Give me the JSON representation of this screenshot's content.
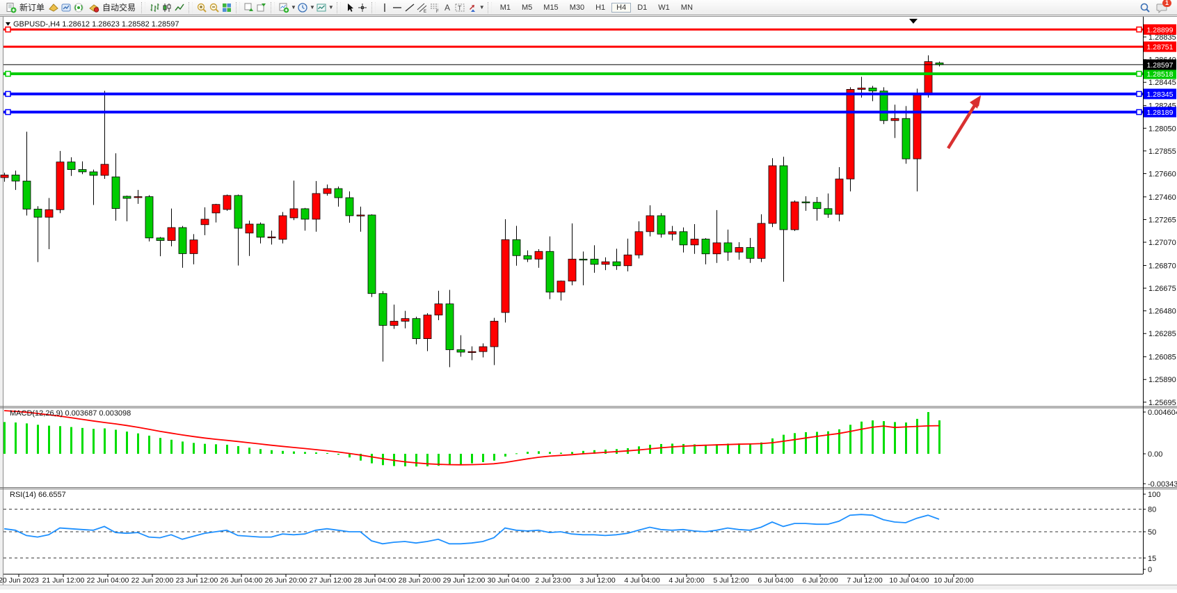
{
  "toolbar": {
    "new_order_label": "新订单",
    "autotrade_label": "自动交易",
    "timeframes": [
      "M1",
      "M5",
      "M15",
      "M30",
      "H1",
      "H4",
      "D1",
      "W1",
      "MN"
    ],
    "active_timeframe": "H4",
    "notification_count": "1",
    "icons": [
      "new-order",
      "metaeditor",
      "terminal",
      "signals",
      "autotrading",
      "bar-chart",
      "candlestick-chart",
      "line-chart",
      "zoom-in",
      "zoom-out",
      "tile-windows",
      "cascade-windows",
      "arrange-windows",
      "indicators",
      "periods",
      "templates",
      "cursor",
      "crosshair",
      "vertical-line",
      "horizontal-line",
      "trendline",
      "equidistant-channel",
      "fibonacci",
      "text",
      "text-label",
      "arrow-tools",
      "search",
      "notifications"
    ]
  },
  "time_axis": {
    "labels": [
      "20 Jun 2023",
      "21 Jun 12:00",
      "22 Jun 04:00",
      "22 Jun 20:00",
      "23 Jun 12:00",
      "26 Jun 04:00",
      "26 Jun 20:00",
      "27 Jun 12:00",
      "28 Jun 04:00",
      "28 Jun 20:00",
      "29 Jun 12:00",
      "30 Jun 04:00",
      "2 Jul 23:00",
      "3 Jul 12:00",
      "4 Jul 04:00",
      "4 Jul 20:00",
      "5 Jul 12:00",
      "6 Jul 04:00",
      "6 Jul 20:00",
      "7 Jul 12:00",
      "10 Jul 04:00",
      "10 Jul 20:00"
    ]
  },
  "chart_data": [
    {
      "type": "candlestick",
      "symbol": "GBPUSD-,H4",
      "ohlc_line": "1.28612 1.28623 1.28582 1.28597",
      "up_color": "#ff0000",
      "down_color": "#00cc00",
      "ylim": [
        1.2567,
        1.28985
      ],
      "y_ticks": [
        "1.28835",
        "1.28640",
        "1.28445",
        "1.28245",
        "1.28050",
        "1.27855",
        "1.27660",
        "1.27460",
        "1.27265",
        "1.27070",
        "1.26870",
        "1.26675",
        "1.26480",
        "1.26285",
        "1.26085",
        "1.25890",
        "1.25695"
      ],
      "hlines": [
        {
          "label": "1.28899",
          "value": 1.28899,
          "color": "#ff0000",
          "width": 3,
          "handles": true
        },
        {
          "label": "1.28751",
          "value": 1.28751,
          "color": "#ff0000",
          "width": 3,
          "handles": false
        },
        {
          "label": "1.28518",
          "value": 1.28518,
          "color": "#00cc00",
          "width": 4,
          "handles": true
        },
        {
          "label": "1.28345",
          "value": 1.28345,
          "color": "#0000ff",
          "width": 4,
          "handles": true
        },
        {
          "label": "1.28189",
          "value": 1.28189,
          "color": "#0000ff",
          "width": 4,
          "handles": true
        }
      ],
      "current_price": {
        "label": "1.28597",
        "value": 1.28597,
        "color": "#000000"
      },
      "arrow_annotation": {
        "color": "#d93030",
        "tail": [
          1363,
          213
        ],
        "tip": [
          1410,
          138
        ]
      },
      "candles": [
        [
          1.27626,
          1.27668,
          1.2759,
          1.27648
        ],
        [
          1.27648,
          1.27686,
          1.2752,
          1.27596
        ],
        [
          1.27596,
          1.2802,
          1.273,
          1.27355
        ],
        [
          1.27355,
          1.2738,
          1.269,
          1.27285
        ],
        [
          1.27285,
          1.2745,
          1.2701,
          1.2735
        ],
        [
          1.2735,
          1.27855,
          1.2732,
          1.2776
        ],
        [
          1.2776,
          1.278,
          1.2764,
          1.27695
        ],
        [
          1.27695,
          1.27765,
          1.27655,
          1.27675
        ],
        [
          1.27675,
          1.27695,
          1.2739,
          1.27645
        ],
        [
          1.27645,
          1.28372,
          1.27615,
          1.2774
        ],
        [
          1.27632,
          1.27835,
          1.27255,
          1.2736
        ],
        [
          1.27465,
          1.27471,
          1.2725,
          1.27447
        ],
        [
          1.27459,
          1.2752,
          1.274,
          1.27462
        ],
        [
          1.27462,
          1.27475,
          1.27077,
          1.27107
        ],
        [
          1.27107,
          1.27115,
          1.2695,
          1.27085
        ],
        [
          1.27085,
          1.2736,
          1.27035,
          1.27196
        ],
        [
          1.27196,
          1.2721,
          1.2685,
          1.26972
        ],
        [
          1.26972,
          1.2714,
          1.2688,
          1.2709
        ],
        [
          1.27221,
          1.2737,
          1.27131,
          1.27268
        ],
        [
          1.27322,
          1.274,
          1.2724,
          1.27395
        ],
        [
          1.27352,
          1.2748,
          1.2734,
          1.27472
        ],
        [
          1.27472,
          1.2748,
          1.2687,
          1.2719
        ],
        [
          1.27149,
          1.27256,
          1.26952,
          1.27226
        ],
        [
          1.27226,
          1.2724,
          1.2706,
          1.27113
        ],
        [
          1.27113,
          1.2717,
          1.2705,
          1.27116
        ],
        [
          1.27095,
          1.2733,
          1.2706,
          1.27298
        ],
        [
          1.2728,
          1.276,
          1.2726,
          1.27358
        ],
        [
          1.27358,
          1.27365,
          1.2717,
          1.27268
        ],
        [
          1.27268,
          1.27596,
          1.27161,
          1.27489
        ],
        [
          1.27489,
          1.27566,
          1.2747,
          1.27531
        ],
        [
          1.27531,
          1.27549,
          1.27376,
          1.27453
        ],
        [
          1.27453,
          1.27507,
          1.27238,
          1.27298
        ],
        [
          1.27298,
          1.27376,
          1.27161,
          1.27304
        ],
        [
          1.27304,
          1.2731,
          1.26599,
          1.26629
        ],
        [
          1.26629,
          1.2665,
          1.26044,
          1.26355
        ],
        [
          1.26355,
          1.26534,
          1.26325,
          1.26391
        ],
        [
          1.26391,
          1.2648,
          1.2633,
          1.26414
        ],
        [
          1.26414,
          1.2643,
          1.26193,
          1.26241
        ],
        [
          1.26241,
          1.2646,
          1.26134,
          1.26444
        ],
        [
          1.26444,
          1.26653,
          1.264,
          1.2654
        ],
        [
          1.2654,
          1.2666,
          1.25996,
          1.26146
        ],
        [
          1.26146,
          1.26271,
          1.26086,
          1.26125
        ],
        [
          1.26125,
          1.26175,
          1.26056,
          1.2613
        ],
        [
          1.2613,
          1.262,
          1.2608,
          1.26172
        ],
        [
          1.26172,
          1.2642,
          1.26014,
          1.26391
        ],
        [
          1.26466,
          1.27268,
          1.2638,
          1.27092
        ],
        [
          1.27092,
          1.27211,
          1.26868,
          1.26955
        ],
        [
          1.26955,
          1.27,
          1.269,
          1.26925
        ],
        [
          1.26925,
          1.2701,
          1.2685,
          1.26991
        ],
        [
          1.26991,
          1.2712,
          1.26581,
          1.26641
        ],
        [
          1.26641,
          1.2674,
          1.26569,
          1.26736
        ],
        [
          1.26736,
          1.27232,
          1.267,
          1.26925
        ],
        [
          1.26925,
          1.2699,
          1.267,
          1.26919
        ],
        [
          1.26925,
          1.27044,
          1.26808,
          1.2688
        ],
        [
          1.2688,
          1.2694,
          1.2683,
          1.26902
        ],
        [
          1.26902,
          1.27014,
          1.26832,
          1.26868
        ],
        [
          1.26868,
          1.27101,
          1.2682,
          1.26961
        ],
        [
          1.26961,
          1.2725,
          1.2693,
          1.27161
        ],
        [
          1.27161,
          1.27387,
          1.2712,
          1.27298
        ],
        [
          1.27298,
          1.2732,
          1.2711,
          1.2714
        ],
        [
          1.2714,
          1.2721,
          1.27085,
          1.27161
        ],
        [
          1.27161,
          1.27197,
          1.26982,
          1.27047
        ],
        [
          1.27047,
          1.27226,
          1.2697,
          1.27097
        ],
        [
          1.27097,
          1.27105,
          1.2688,
          1.2697
        ],
        [
          1.2697,
          1.27346,
          1.26892,
          1.27065
        ],
        [
          1.27065,
          1.27179,
          1.2691,
          1.26985
        ],
        [
          1.26985,
          1.2707,
          1.2692,
          1.27025
        ],
        [
          1.27025,
          1.27107,
          1.26892,
          1.26931
        ],
        [
          1.26931,
          1.2731,
          1.269,
          1.27232
        ],
        [
          1.27232,
          1.27793,
          1.272,
          1.27728
        ],
        [
          1.27728,
          1.27805,
          1.26731,
          1.27178
        ],
        [
          1.27178,
          1.27429,
          1.27167,
          1.27417
        ],
        [
          1.27417,
          1.27465,
          1.2734,
          1.27413
        ],
        [
          1.27413,
          1.27459,
          1.27256,
          1.27359
        ],
        [
          1.27359,
          1.27489,
          1.2728,
          1.2731
        ],
        [
          1.2731,
          1.27716,
          1.2725,
          1.27614
        ],
        [
          1.27614,
          1.28402,
          1.27507,
          1.28384
        ],
        [
          1.28384,
          1.28492,
          1.28313,
          1.28396
        ],
        [
          1.28396,
          1.28414,
          1.28283,
          1.2837
        ],
        [
          1.2837,
          1.28402,
          1.28086,
          1.28116
        ],
        [
          1.28116,
          1.28253,
          1.27966,
          1.28134
        ],
        [
          1.28134,
          1.28241,
          1.27745,
          1.27787
        ],
        [
          1.27787,
          1.2839,
          1.27507,
          1.28343
        ],
        [
          1.28343,
          1.28677,
          1.28313,
          1.28623
        ],
        [
          1.28612,
          1.28623,
          1.28582,
          1.28597
        ]
      ]
    },
    {
      "type": "bar",
      "label": "MACD(12,26,9) 0.003687 0.003098",
      "bar_color": "#00dd00",
      "signal_color": "#ff0000",
      "y_ticks": [
        {
          "label": "0.004604",
          "value": 0.004604
        },
        {
          "label": "0.00",
          "value": 0
        },
        {
          "label": "-0.003438",
          "value": -0.003438
        }
      ],
      "values": [
        0.0035,
        0.00345,
        0.00335,
        0.0032,
        0.0031,
        0.00305,
        0.00295,
        0.00285,
        0.00275,
        0.0028,
        0.00265,
        0.00245,
        0.00225,
        0.002,
        0.00175,
        0.00155,
        0.00135,
        0.0012,
        0.0011,
        0.00105,
        0.001,
        0.00085,
        0.00068,
        0.00052,
        0.0004,
        0.00032,
        0.00026,
        0.0002,
        0.00015,
        8e-05,
        -0.0001,
        -0.0004,
        -0.00075,
        -0.00105,
        -0.00125,
        -0.00135,
        -0.00138,
        -0.0014,
        -0.00138,
        -0.00132,
        -0.00125,
        -0.00115,
        -0.00105,
        -0.00092,
        -0.00075,
        -0.0003,
        5e-05,
        0.00022,
        0.00028,
        0.0002,
        0.00012,
        0.0002,
        0.00032,
        0.0004,
        0.00046,
        0.00052,
        0.00062,
        0.00082,
        0.001,
        0.00108,
        0.00112,
        0.00108,
        0.00104,
        0.001,
        0.00106,
        0.00112,
        0.00114,
        0.00112,
        0.00125,
        0.0017,
        0.0021,
        0.00228,
        0.00238,
        0.00242,
        0.00248,
        0.0027,
        0.0032,
        0.00355,
        0.00368,
        0.0036,
        0.0035,
        0.00345,
        0.00385,
        0.0046,
        0.00369
      ],
      "signal": [
        0.00476,
        0.00468,
        0.00458,
        0.00445,
        0.0043,
        0.00415,
        0.00398,
        0.0038,
        0.00362,
        0.00345,
        0.0033,
        0.00312,
        0.00292,
        0.0027,
        0.00248,
        0.00228,
        0.00208,
        0.0019,
        0.00174,
        0.0016,
        0.00148,
        0.00136,
        0.00122,
        0.00108,
        0.00094,
        0.00082,
        0.0007,
        0.00058,
        0.00046,
        0.00034,
        0.0002,
        4e-05,
        -0.00014,
        -0.00034,
        -0.00054,
        -0.00072,
        -0.00088,
        -0.001,
        -0.0011,
        -0.00116,
        -0.0012,
        -0.00121,
        -0.0012,
        -0.00116,
        -0.0011,
        -0.00096,
        -0.00076,
        -0.00056,
        -0.00038,
        -0.00026,
        -0.00018,
        -0.0001,
        0.0,
        8e-05,
        0.00016,
        0.00024,
        0.00032,
        0.00042,
        0.00054,
        0.00066,
        0.00076,
        0.00084,
        0.0009,
        0.00094,
        0.00098,
        0.00102,
        0.00106,
        0.00108,
        0.00112,
        0.00122,
        0.00138,
        0.00156,
        0.00174,
        0.00192,
        0.00208,
        0.00224,
        0.00246,
        0.0027,
        0.00292,
        0.00306,
        0.0029,
        0.00296,
        0.00302,
        0.00308,
        0.0031
      ]
    },
    {
      "type": "line",
      "label": "RSI(14) 66.6557",
      "color": "#1e90ff",
      "levels": [
        80,
        50,
        15
      ],
      "y_ticks": [
        {
          "label": "100",
          "value": 100
        },
        {
          "label": "80",
          "value": 80
        },
        {
          "label": "50",
          "value": 50
        },
        {
          "label": "15",
          "value": 15
        },
        {
          "label": "0",
          "value": 0
        }
      ],
      "values": [
        54,
        52,
        45,
        43,
        46,
        55,
        54,
        53,
        52,
        57,
        49,
        48,
        49,
        43,
        42,
        46,
        40,
        44,
        48,
        50,
        52,
        45,
        44,
        43,
        43,
        47,
        46,
        47,
        52,
        54,
        52,
        50,
        50,
        38,
        34,
        36,
        37,
        35,
        37,
        40,
        34,
        34,
        35,
        37,
        42,
        55,
        52,
        51,
        52,
        49,
        50,
        47,
        46,
        46,
        45,
        46,
        48,
        52,
        56,
        53,
        52,
        53,
        51,
        50,
        52,
        55,
        53,
        52,
        56,
        63,
        57,
        61,
        61,
        60,
        60,
        64,
        72,
        73,
        72,
        66,
        63,
        62,
        68,
        72,
        66.7
      ]
    }
  ]
}
